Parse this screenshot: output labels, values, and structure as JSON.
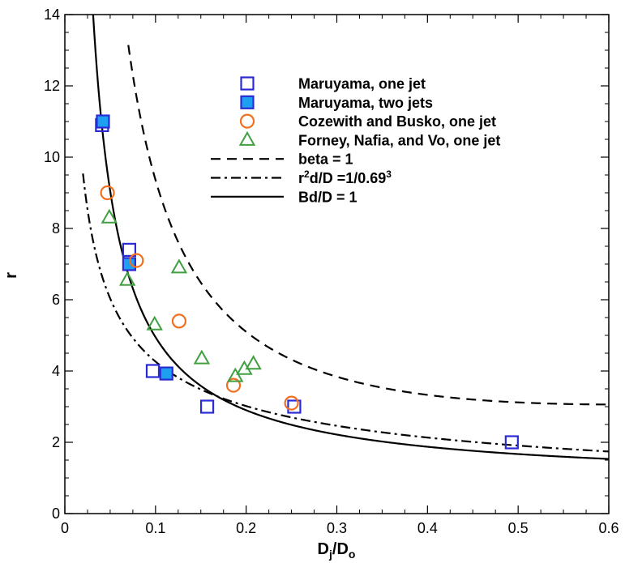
{
  "chart_data": {
    "type": "scatter",
    "xlim": [
      0,
      0.6
    ],
    "ylim": [
      0,
      14
    ],
    "x_ticks": [
      0,
      0.1,
      0.2,
      0.3,
      0.4,
      0.5,
      0.6
    ],
    "x_tick_labels": [
      "0",
      "0.1",
      "0.2",
      "0.3",
      "0.4",
      "0.5",
      "0.6"
    ],
    "y_ticks": [
      0,
      2,
      4,
      6,
      8,
      10,
      12,
      14
    ],
    "y_tick_labels": [
      "0",
      "2",
      "4",
      "6",
      "8",
      "10",
      "12",
      "14"
    ],
    "xlabel": {
      "main": "D",
      "sub1": "j",
      "slash": "/D",
      "sub2": "o"
    },
    "ylabel": "r",
    "grid": false,
    "legend_position": "top-right",
    "colors": {
      "blue": "#2b2bd4",
      "blue_fill": "#1ea0f0",
      "orange": "#f07020",
      "green": "#40a040",
      "line": "#000000"
    },
    "series": [
      {
        "name": "Maruyama, one jet",
        "kind": "marker",
        "marker": "square-open",
        "color": "#2b2bd4",
        "points": [
          [
            0.041,
            10.9
          ],
          [
            0.071,
            7.4
          ],
          [
            0.097,
            4.0
          ],
          [
            0.157,
            3.0
          ],
          [
            0.253,
            3.0
          ],
          [
            0.493,
            2.0
          ]
        ]
      },
      {
        "name": "Maruyama, two jets",
        "kind": "marker",
        "marker": "square-filled",
        "color": "#2b2bd4",
        "fill": "#1ea0f0",
        "points": [
          [
            0.042,
            11.0
          ],
          [
            0.071,
            7.0
          ],
          [
            0.112,
            3.93
          ]
        ]
      },
      {
        "name": "Cozewith and Busko, one jet",
        "kind": "marker",
        "marker": "circle-open",
        "color": "#f07020",
        "points": [
          [
            0.047,
            9.0
          ],
          [
            0.079,
            7.1
          ],
          [
            0.126,
            5.4
          ],
          [
            0.186,
            3.6
          ],
          [
            0.25,
            3.1
          ]
        ]
      },
      {
        "name": "Forney, Nafia, and Vo, one jet",
        "kind": "marker",
        "marker": "triangle-open",
        "color": "#40a040",
        "points": [
          [
            0.049,
            8.3
          ],
          [
            0.069,
            6.55
          ],
          [
            0.099,
            5.3
          ],
          [
            0.126,
            6.9
          ],
          [
            0.151,
            4.35
          ],
          [
            0.188,
            3.85
          ],
          [
            0.198,
            4.05
          ],
          [
            0.208,
            4.2
          ]
        ]
      },
      {
        "name": "beta = 1",
        "kind": "line",
        "style": "dashed",
        "color": "#000000",
        "formula": "y = 0.9/x + 0.12 + 2.4*x",
        "x_range": [
          0.07,
          0.6
        ]
      },
      {
        "name": "r",
        "name_sup": "2",
        "name_rest": "d/D =1/0.69",
        "name_sup2": "3",
        "kind": "line",
        "style": "dashdot",
        "color": "#000000",
        "formula": "y = sqrt(1.82/x)",
        "x_range": [
          0.02,
          0.6
        ]
      },
      {
        "name": "Bd/D = 1",
        "kind": "line",
        "style": "solid",
        "color": "#000000",
        "formula": "y = 0.41/x + 0.85",
        "x_range": [
          0.031,
          0.6
        ]
      }
    ]
  }
}
